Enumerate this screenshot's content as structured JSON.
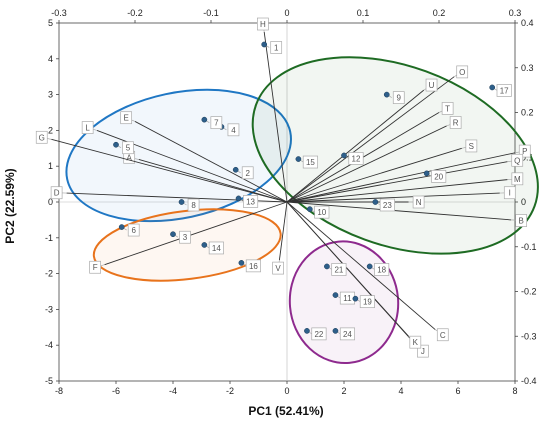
{
  "chart_data": {
    "type": "scatter",
    "title": "",
    "xlabel": "PC1 (52.41%)",
    "ylabel": "PC2 (22.59%)",
    "xlim": [
      -8,
      8
    ],
    "ylim": [
      -5,
      5
    ],
    "x2lim": [
      -0.3,
      0.3
    ],
    "y2lim": [
      -0.4,
      0.4
    ],
    "xticks": [
      "-8",
      "-6",
      "-4",
      "-2",
      "0",
      "2",
      "4",
      "6",
      "8"
    ],
    "yticks": [
      "-5",
      "-4",
      "-3",
      "-2",
      "-1",
      "0",
      "1",
      "2",
      "3",
      "4",
      "5"
    ],
    "x2ticks": [
      "-0.3",
      "-0.2",
      "-0.1",
      "0",
      "0.1",
      "0.2",
      "0.3"
    ],
    "y2ticks": [
      "-0.4",
      "-0.3",
      "-0.2",
      "-0.1",
      "0",
      "0.1",
      "0.2",
      "0.3",
      "0.4"
    ],
    "grid": false,
    "legend": "none",
    "colors": {
      "point": "#2e5f8a",
      "loading_line": "#333333",
      "group_blue": "#1f77c4",
      "group_green": "#1e6b23",
      "group_orange": "#e8731c",
      "group_purple": "#8e2a8e"
    },
    "scores": [
      {
        "label": "1",
        "x": -0.8,
        "y": 4.4
      },
      {
        "label": "2",
        "x": -1.8,
        "y": 0.9
      },
      {
        "label": "3",
        "x": -4.0,
        "y": -0.9
      },
      {
        "label": "4",
        "x": -2.3,
        "y": 2.1
      },
      {
        "label": "5",
        "x": -6.0,
        "y": 1.6
      },
      {
        "label": "6",
        "x": -5.8,
        "y": -0.7
      },
      {
        "label": "7",
        "x": -2.9,
        "y": 2.3
      },
      {
        "label": "8",
        "x": -3.7,
        "y": 0.0
      },
      {
        "label": "9",
        "x": 3.5,
        "y": 3.0
      },
      {
        "label": "10",
        "x": 0.8,
        "y": -0.2
      },
      {
        "label": "11",
        "x": 1.7,
        "y": -2.6
      },
      {
        "label": "12",
        "x": 2.0,
        "y": 1.3
      },
      {
        "label": "13",
        "x": -1.7,
        "y": 0.1
      },
      {
        "label": "14",
        "x": -2.9,
        "y": -1.2
      },
      {
        "label": "15",
        "x": 0.4,
        "y": 1.2
      },
      {
        "label": "16",
        "x": -1.6,
        "y": -1.7
      },
      {
        "label": "17",
        "x": 7.2,
        "y": 3.2
      },
      {
        "label": "18",
        "x": 2.9,
        "y": -1.8
      },
      {
        "label": "19",
        "x": 2.4,
        "y": -2.7
      },
      {
        "label": "20",
        "x": 4.9,
        "y": 0.8
      },
      {
        "label": "21",
        "x": 1.4,
        "y": -1.8
      },
      {
        "label": "22",
        "x": 0.7,
        "y": -3.6
      },
      {
        "label": "23",
        "x": 3.1,
        "y": 0.0
      },
      {
        "label": "24",
        "x": 1.7,
        "y": -3.6
      }
    ],
    "loadings": [
      {
        "label": "A",
        "x": -0.195,
        "y": 0.095
      },
      {
        "label": "B",
        "x": 0.295,
        "y": -0.04
      },
      {
        "label": "C",
        "x": 0.195,
        "y": -0.285
      },
      {
        "label": "D",
        "x": -0.29,
        "y": 0.02
      },
      {
        "label": "E",
        "x": -0.2,
        "y": 0.18
      },
      {
        "label": "F",
        "x": -0.24,
        "y": -0.14
      },
      {
        "label": "G",
        "x": -0.31,
        "y": 0.14
      },
      {
        "label": "H",
        "x": -0.03,
        "y": 0.38
      },
      {
        "label": "I",
        "x": 0.28,
        "y": 0.02
      },
      {
        "label": "J",
        "x": 0.17,
        "y": -0.32
      },
      {
        "label": "K",
        "x": 0.16,
        "y": -0.3
      },
      {
        "label": "L",
        "x": -0.25,
        "y": 0.16
      },
      {
        "label": "M",
        "x": 0.29,
        "y": 0.05
      },
      {
        "label": "N",
        "x": 0.16,
        "y": 0.0
      },
      {
        "label": "O",
        "x": 0.22,
        "y": 0.28
      },
      {
        "label": "P",
        "x": 0.3,
        "y": 0.11
      },
      {
        "label": "Q",
        "x": 0.29,
        "y": 0.09
      },
      {
        "label": "R",
        "x": 0.21,
        "y": 0.17
      },
      {
        "label": "S",
        "x": 0.23,
        "y": 0.12
      },
      {
        "label": "T",
        "x": 0.2,
        "y": 0.2
      },
      {
        "label": "U",
        "x": 0.18,
        "y": 0.25
      },
      {
        "label": "V",
        "x": -0.01,
        "y": -0.13
      }
    ],
    "groups": [
      {
        "color": "group_blue",
        "members": [
          "2",
          "4",
          "5",
          "7",
          "8",
          "13"
        ],
        "cx": -3.8,
        "cy": 1.3,
        "rx": 4.0,
        "ry": 1.75,
        "angle": -12
      },
      {
        "color": "group_green",
        "members": [
          "9",
          "10",
          "12",
          "15",
          "17",
          "20",
          "23"
        ],
        "cx": 3.8,
        "cy": 1.3,
        "rx": 5.2,
        "ry": 2.5,
        "angle": 20
      },
      {
        "color": "group_orange",
        "members": [
          "3",
          "6",
          "14",
          "16"
        ],
        "cx": -3.5,
        "cy": -1.2,
        "rx": 3.3,
        "ry": 0.95,
        "angle": -7
      },
      {
        "color": "group_purple",
        "members": [
          "11",
          "18",
          "19",
          "21",
          "22",
          "24"
        ],
        "cx": 2.0,
        "cy": -2.8,
        "rx": 1.9,
        "ry": 1.7,
        "angle": -5
      }
    ]
  }
}
